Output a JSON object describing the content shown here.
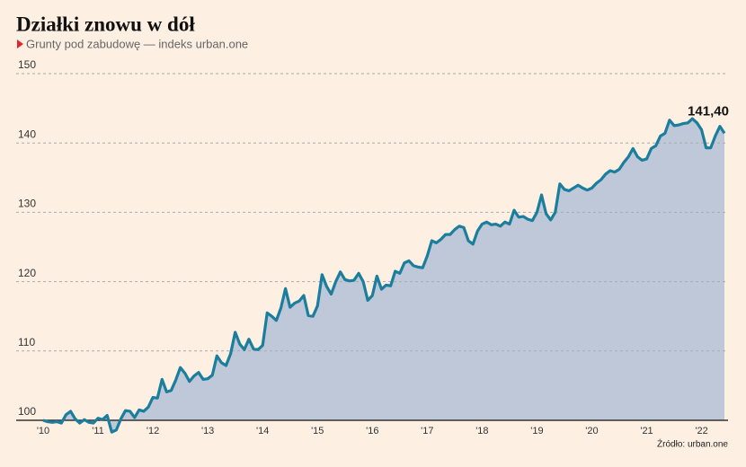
{
  "chart_data": {
    "type": "area",
    "title": "Działki znowu w dół",
    "subtitle": "Grunty pod zabudowę — indeks urban.one",
    "source": "Źródło: urban.one",
    "categories": [
      "'10",
      null,
      null,
      null,
      null,
      null,
      null,
      null,
      null,
      null,
      null,
      null,
      "'11",
      null,
      null,
      null,
      null,
      null,
      null,
      null,
      null,
      null,
      null,
      null,
      "'12",
      null,
      null,
      null,
      null,
      null,
      null,
      null,
      null,
      null,
      null,
      null,
      "'13",
      null,
      null,
      null,
      null,
      null,
      null,
      null,
      null,
      null,
      null,
      null,
      "'14",
      null,
      null,
      null,
      null,
      null,
      null,
      null,
      null,
      null,
      null,
      null,
      "'15",
      null,
      null,
      null,
      null,
      null,
      null,
      null,
      null,
      null,
      null,
      null,
      "'16",
      null,
      null,
      null,
      null,
      null,
      null,
      null,
      null,
      null,
      null,
      null,
      "'17",
      null,
      null,
      null,
      null,
      null,
      null,
      null,
      null,
      null,
      null,
      null,
      "'18",
      null,
      null,
      null,
      null,
      null,
      null,
      null,
      null,
      null,
      null,
      null,
      "'19",
      null,
      null,
      null,
      null,
      null,
      null,
      null,
      null,
      null,
      null,
      null,
      "'20",
      null,
      null,
      null,
      null,
      null,
      null,
      null,
      null,
      null,
      null,
      null,
      "'21",
      null,
      null,
      null,
      null,
      null,
      null,
      null,
      null,
      null,
      null,
      null,
      "'22",
      null,
      null,
      null,
      null,
      null
    ],
    "values": [
      100,
      99.8,
      99.7,
      99.8,
      99.6,
      100.8,
      101.3,
      100.2,
      99.6,
      100.1,
      99.7,
      99.6,
      100.3,
      100.1,
      100.7,
      98.3,
      98.6,
      100.2,
      101.4,
      101.3,
      100.4,
      101.5,
      101.3,
      101.9,
      103.3,
      103.2,
      105.9,
      104.1,
      104.3,
      105.8,
      107.6,
      106.8,
      105.6,
      106.4,
      106.9,
      105.9,
      106,
      106.5,
      109.3,
      108.3,
      107.9,
      109.6,
      112.7,
      111,
      110.2,
      111.7,
      110.3,
      110.2,
      110.8,
      115.5,
      115,
      114.4,
      116.2,
      119,
      116.3,
      116.9,
      117.2,
      118,
      115.1,
      115,
      116.5,
      121,
      119.3,
      118.2,
      120,
      121.4,
      120.3,
      120.1,
      120.2,
      121.2,
      120,
      117.3,
      118,
      120.8,
      118.9,
      119.5,
      119.4,
      121.5,
      121.2,
      122.7,
      123,
      122.3,
      122.1,
      122,
      123.7,
      125.9,
      125.6,
      126.1,
      126.8,
      126.8,
      127.5,
      128,
      127.8,
      125.9,
      125.4,
      127.3,
      128.3,
      128.6,
      128.2,
      128.3,
      128,
      128.6,
      128.3,
      130.3,
      129.3,
      129.4,
      129,
      128.8,
      130,
      132.5,
      129.8,
      128.9,
      130,
      134.1,
      133.3,
      133.1,
      133.5,
      133.9,
      133.5,
      133.2,
      133.5,
      134.2,
      134.7,
      135.5,
      136,
      135.8,
      136.2,
      137.2,
      138,
      139.2,
      138,
      137.5,
      137.7,
      139.2,
      139.6,
      141,
      141.4,
      143.3,
      142.5,
      142.6,
      142.8,
      142.9,
      143.5,
      142.9,
      141.9,
      139.3,
      139.3,
      141,
      142.4,
      141.4
    ],
    "value_labels": [
      null,
      null,
      null,
      null,
      null,
      null,
      null,
      null,
      null,
      null,
      null,
      null,
      null,
      null,
      null,
      null,
      null,
      null,
      null,
      null,
      null,
      null,
      null,
      null,
      null,
      null,
      null,
      null,
      null,
      null,
      null,
      null,
      null,
      null,
      null,
      null,
      null,
      null,
      null,
      null,
      null,
      null,
      null,
      null,
      null,
      null,
      null,
      null,
      null,
      null,
      null,
      null,
      null,
      null,
      null,
      null,
      null,
      null,
      null,
      null,
      null,
      null,
      null,
      null,
      null,
      null,
      null,
      null,
      null,
      null,
      null,
      null,
      null,
      null,
      null,
      null,
      null,
      null,
      null,
      null,
      null,
      null,
      null,
      null,
      null,
      null,
      null,
      null,
      null,
      null,
      null,
      null,
      null,
      null,
      null,
      null,
      null,
      null,
      null,
      null,
      null,
      null,
      null,
      null,
      null,
      null,
      null,
      null,
      null,
      null,
      null,
      null,
      null,
      null,
      null,
      null,
      null,
      null,
      null,
      null,
      null,
      null,
      null,
      null,
      null,
      null,
      null,
      null,
      null,
      null,
      null,
      null,
      null,
      null,
      null,
      null,
      null,
      null,
      null,
      null,
      null,
      null,
      null,
      null,
      null,
      null,
      null,
      null,
      null,
      "141,40"
    ],
    "color": "#1b7e9c",
    "area_color": "#bfc8d9",
    "ylim": [
      100,
      150
    ],
    "yticks": [
      100,
      110,
      120,
      130,
      140,
      150
    ],
    "grid": true
  }
}
